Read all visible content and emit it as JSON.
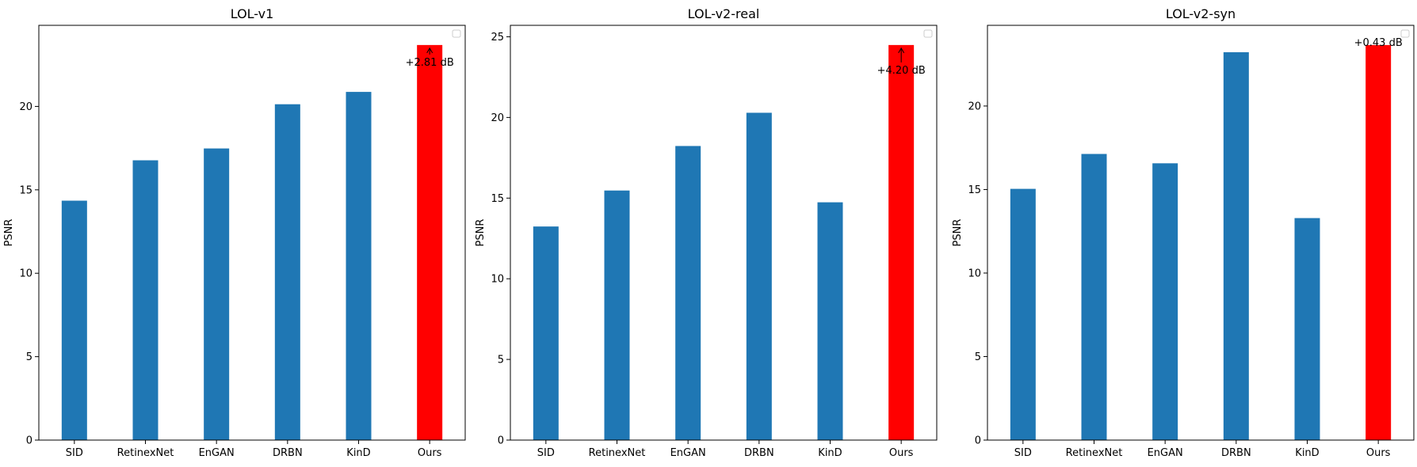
{
  "chart_data": [
    {
      "type": "bar",
      "title": "LOL-v1",
      "xlabel": "",
      "ylabel": "PSNR",
      "categories": [
        "SID",
        "RetinexNet",
        "EnGAN",
        "DRBN",
        "KinD",
        "Ours"
      ],
      "values": [
        14.35,
        16.77,
        17.48,
        20.13,
        20.87,
        23.68
      ],
      "bar_colors": [
        "#1f77b4",
        "#1f77b4",
        "#1f77b4",
        "#1f77b4",
        "#1f77b4",
        "#ff0000"
      ],
      "ylim": [
        0,
        24.86
      ],
      "yticks": [
        0,
        5,
        10,
        15,
        20
      ],
      "annotation": {
        "text": "+2.81 dB",
        "category": "Ours"
      },
      "legend": "top-right (empty)",
      "grid": false
    },
    {
      "type": "bar",
      "title": "LOL-v2-real",
      "xlabel": "",
      "ylabel": "PSNR",
      "categories": [
        "SID",
        "RetinexNet",
        "EnGAN",
        "DRBN",
        "KinD",
        "Ours"
      ],
      "values": [
        13.24,
        15.47,
        18.23,
        20.29,
        14.74,
        24.49
      ],
      "bar_colors": [
        "#1f77b4",
        "#1f77b4",
        "#1f77b4",
        "#1f77b4",
        "#1f77b4",
        "#ff0000"
      ],
      "ylim": [
        0,
        25.71
      ],
      "yticks": [
        0,
        5,
        10,
        15,
        20,
        25
      ],
      "annotation": {
        "text": "+4.20 dB",
        "category": "Ours"
      },
      "legend": "top-right (empty)",
      "grid": false
    },
    {
      "type": "bar",
      "title": "LOL-v2-syn",
      "xlabel": "",
      "ylabel": "PSNR",
      "categories": [
        "SID",
        "RetinexNet",
        "EnGAN",
        "DRBN",
        "KinD",
        "Ours"
      ],
      "values": [
        15.04,
        17.13,
        16.57,
        23.22,
        13.29,
        23.65
      ],
      "bar_colors": [
        "#1f77b4",
        "#1f77b4",
        "#1f77b4",
        "#1f77b4",
        "#1f77b4",
        "#ff0000"
      ],
      "ylim": [
        0,
        24.83
      ],
      "yticks": [
        0,
        5,
        10,
        15,
        20
      ],
      "annotation": {
        "text": "+0.43 dB",
        "category": "Ours"
      },
      "legend": "top-right (empty)",
      "grid": false
    }
  ]
}
